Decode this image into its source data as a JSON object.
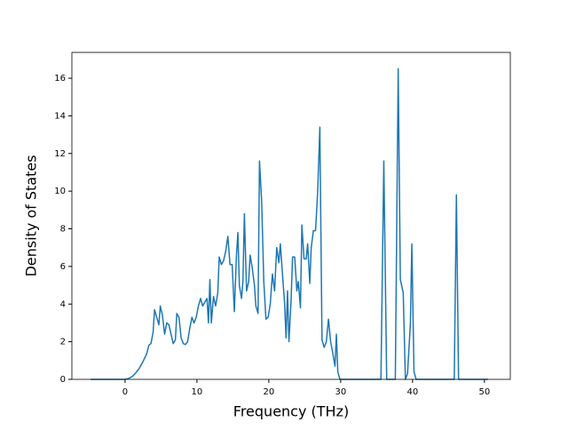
{
  "chart_data": {
    "type": "line",
    "xlabel": "Frequency (THz)",
    "ylabel": "Density of States",
    "color": "#1f77b4",
    "xlim": [
      -7.4,
      53.6
    ],
    "ylim": [
      0,
      17.37
    ],
    "xticks": [
      0,
      10,
      20,
      30,
      40,
      50
    ],
    "yticks": [
      0,
      2,
      4,
      6,
      8,
      10,
      12,
      14,
      16
    ],
    "x": [
      -4.8,
      0,
      0.5,
      1,
      1.5,
      2,
      2.5,
      3,
      3.3,
      3.6,
      3.9,
      4.1,
      4.4,
      4.7,
      4.9,
      5.2,
      5.5,
      5.8,
      6.1,
      6.4,
      6.7,
      7.0,
      7.2,
      7.5,
      7.8,
      8.1,
      8.4,
      8.7,
      9.0,
      9.3,
      9.6,
      9.9,
      10.2,
      10.5,
      10.8,
      11.1,
      11.4,
      11.6,
      11.8,
      12.0,
      12.3,
      12.6,
      12.9,
      13.1,
      13.4,
      13.7,
      14.0,
      14.3,
      14.6,
      14.9,
      15.2,
      15.5,
      15.7,
      15.9,
      16.2,
      16.4,
      16.6,
      16.9,
      17.2,
      17.4,
      17.7,
      18.0,
      18.2,
      18.5,
      18.7,
      19.0,
      19.3,
      19.6,
      19.9,
      20.2,
      20.5,
      20.8,
      21.1,
      21.4,
      21.6,
      21.9,
      22.2,
      22.4,
      22.6,
      22.8,
      23.1,
      23.3,
      23.6,
      23.9,
      24.1,
      24.4,
      24.6,
      24.9,
      25.2,
      25.4,
      25.7,
      25.9,
      26.2,
      26.5,
      26.8,
      27.1,
      27.4,
      27.7,
      28.0,
      28.3,
      28.6,
      28.9,
      29.2,
      29.4,
      29.6,
      29.9,
      35.6,
      36.0,
      36.4,
      37.6,
      38.0,
      38.3,
      38.7,
      39.0,
      39.3,
      39.7,
      39.9,
      40.2,
      40.5,
      45.8,
      46.1,
      46.4,
      50.5
    ],
    "values": [
      0,
      0,
      0.05,
      0.15,
      0.35,
      0.6,
      0.95,
      1.35,
      1.8,
      1.9,
      2.5,
      3.7,
      3.3,
      2.9,
      3.9,
      3.4,
      2.4,
      3.0,
      2.9,
      2.4,
      1.9,
      2.1,
      3.5,
      3.3,
      2.2,
      1.9,
      1.85,
      2.0,
      2.7,
      3.3,
      3.0,
      3.3,
      3.9,
      4.3,
      3.9,
      4.1,
      4.3,
      3.0,
      5.3,
      3.0,
      4.4,
      3.9,
      4.6,
      6.5,
      6.1,
      6.3,
      6.8,
      7.6,
      6.1,
      6.1,
      3.6,
      6.6,
      7.8,
      5.0,
      4.3,
      5.2,
      8.8,
      4.7,
      5.2,
      6.6,
      5.9,
      5.0,
      3.9,
      3.5,
      11.6,
      9.5,
      5.2,
      3.2,
      3.3,
      4.0,
      5.6,
      4.7,
      7.0,
      6.2,
      7.2,
      5.6,
      4.0,
      2.2,
      4.7,
      2.0,
      4.2,
      6.5,
      6.5,
      4.7,
      5.2,
      3.8,
      8.2,
      6.4,
      6.4,
      7.2,
      5.1,
      7.0,
      7.9,
      7.9,
      10.0,
      13.4,
      2.1,
      1.7,
      2.0,
      3.2,
      2.0,
      1.4,
      0.7,
      2.4,
      0.4,
      0,
      0,
      11.6,
      0,
      0,
      16.5,
      5.3,
      4.6,
      0,
      0.3,
      3.0,
      7.2,
      0.4,
      0,
      0,
      9.8,
      0,
      0
    ]
  }
}
